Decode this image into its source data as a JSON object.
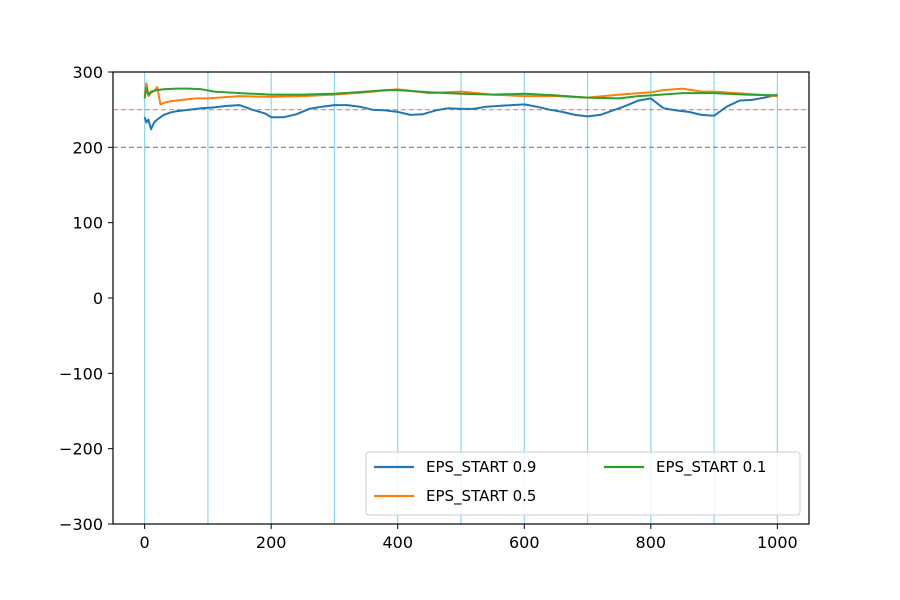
{
  "chart_data": {
    "type": "line",
    "title": "",
    "xlabel": "",
    "ylabel": "",
    "xlim": [
      -50,
      1050
    ],
    "ylim": [
      -300,
      300
    ],
    "xticks": [
      0,
      200,
      400,
      600,
      800,
      1000
    ],
    "yticks": [
      -300,
      -200,
      -100,
      0,
      100,
      200,
      300
    ],
    "ytick_labels": [
      "−300",
      "−200",
      "−100",
      "0",
      "100",
      "200",
      "300"
    ],
    "grid": false,
    "vertical_markers": {
      "x": [
        0,
        100,
        200,
        300,
        400,
        500,
        600,
        700,
        800,
        900,
        1000
      ],
      "color": "#87d7f5"
    },
    "reference_lines": [
      {
        "y": 250,
        "color": "#ee7a77",
        "style": "dashed"
      },
      {
        "y": 200,
        "color": "#7a78c6",
        "style": "dashed"
      }
    ],
    "legend_location": "lower right",
    "series": [
      {
        "name": "EPS_START 0.9",
        "color": "#1f77b4",
        "x": [
          0,
          3,
          6,
          10,
          15,
          20,
          30,
          40,
          50,
          70,
          90,
          110,
          130,
          150,
          170,
          190,
          200,
          220,
          240,
          260,
          280,
          300,
          320,
          340,
          360,
          380,
          400,
          420,
          440,
          460,
          480,
          500,
          520,
          540,
          560,
          580,
          600,
          620,
          640,
          660,
          680,
          700,
          720,
          740,
          760,
          780,
          800,
          820,
          840,
          860,
          880,
          900,
          920,
          940,
          960,
          980,
          1000
        ],
        "y": [
          240,
          233,
          237,
          224,
          233,
          237,
          243,
          246,
          248,
          250,
          252,
          253,
          255,
          256,
          250,
          245,
          240,
          240,
          244,
          251,
          254,
          256,
          256,
          254,
          250,
          249,
          247,
          243,
          244,
          249,
          252,
          251,
          251,
          254,
          255,
          256,
          257,
          254,
          250,
          247,
          243,
          241,
          243,
          249,
          255,
          262,
          265,
          252,
          249,
          247,
          243,
          242,
          254,
          262,
          263,
          266,
          270
        ]
      },
      {
        "name": "EPS_START 0.5",
        "color": "#ff7f0e",
        "x": [
          0,
          3,
          6,
          10,
          15,
          20,
          25,
          30,
          40,
          60,
          80,
          100,
          150,
          200,
          250,
          300,
          350,
          400,
          450,
          500,
          550,
          600,
          650,
          700,
          750,
          800,
          820,
          850,
          880,
          900,
          950,
          1000
        ],
        "y": [
          270,
          285,
          268,
          272,
          275,
          280,
          257,
          259,
          261,
          263,
          265,
          265,
          268,
          267,
          268,
          270,
          273,
          277,
          272,
          274,
          270,
          268,
          268,
          266,
          270,
          273,
          276,
          278,
          274,
          274,
          271,
          268
        ]
      },
      {
        "name": "EPS_START 0.1",
        "color": "#2ca02c",
        "x": [
          0,
          3,
          6,
          10,
          15,
          20,
          30,
          50,
          70,
          90,
          110,
          150,
          200,
          250,
          300,
          350,
          380,
          400,
          450,
          500,
          550,
          600,
          650,
          700,
          750,
          780,
          800,
          850,
          900,
          950,
          1000
        ],
        "y": [
          265,
          279,
          270,
          274,
          275,
          276,
          277,
          278,
          278,
          277,
          274,
          272,
          270,
          270,
          271,
          274,
          276,
          276,
          273,
          271,
          270,
          271,
          269,
          266,
          265,
          268,
          269,
          272,
          272,
          270,
          269
        ]
      }
    ]
  }
}
